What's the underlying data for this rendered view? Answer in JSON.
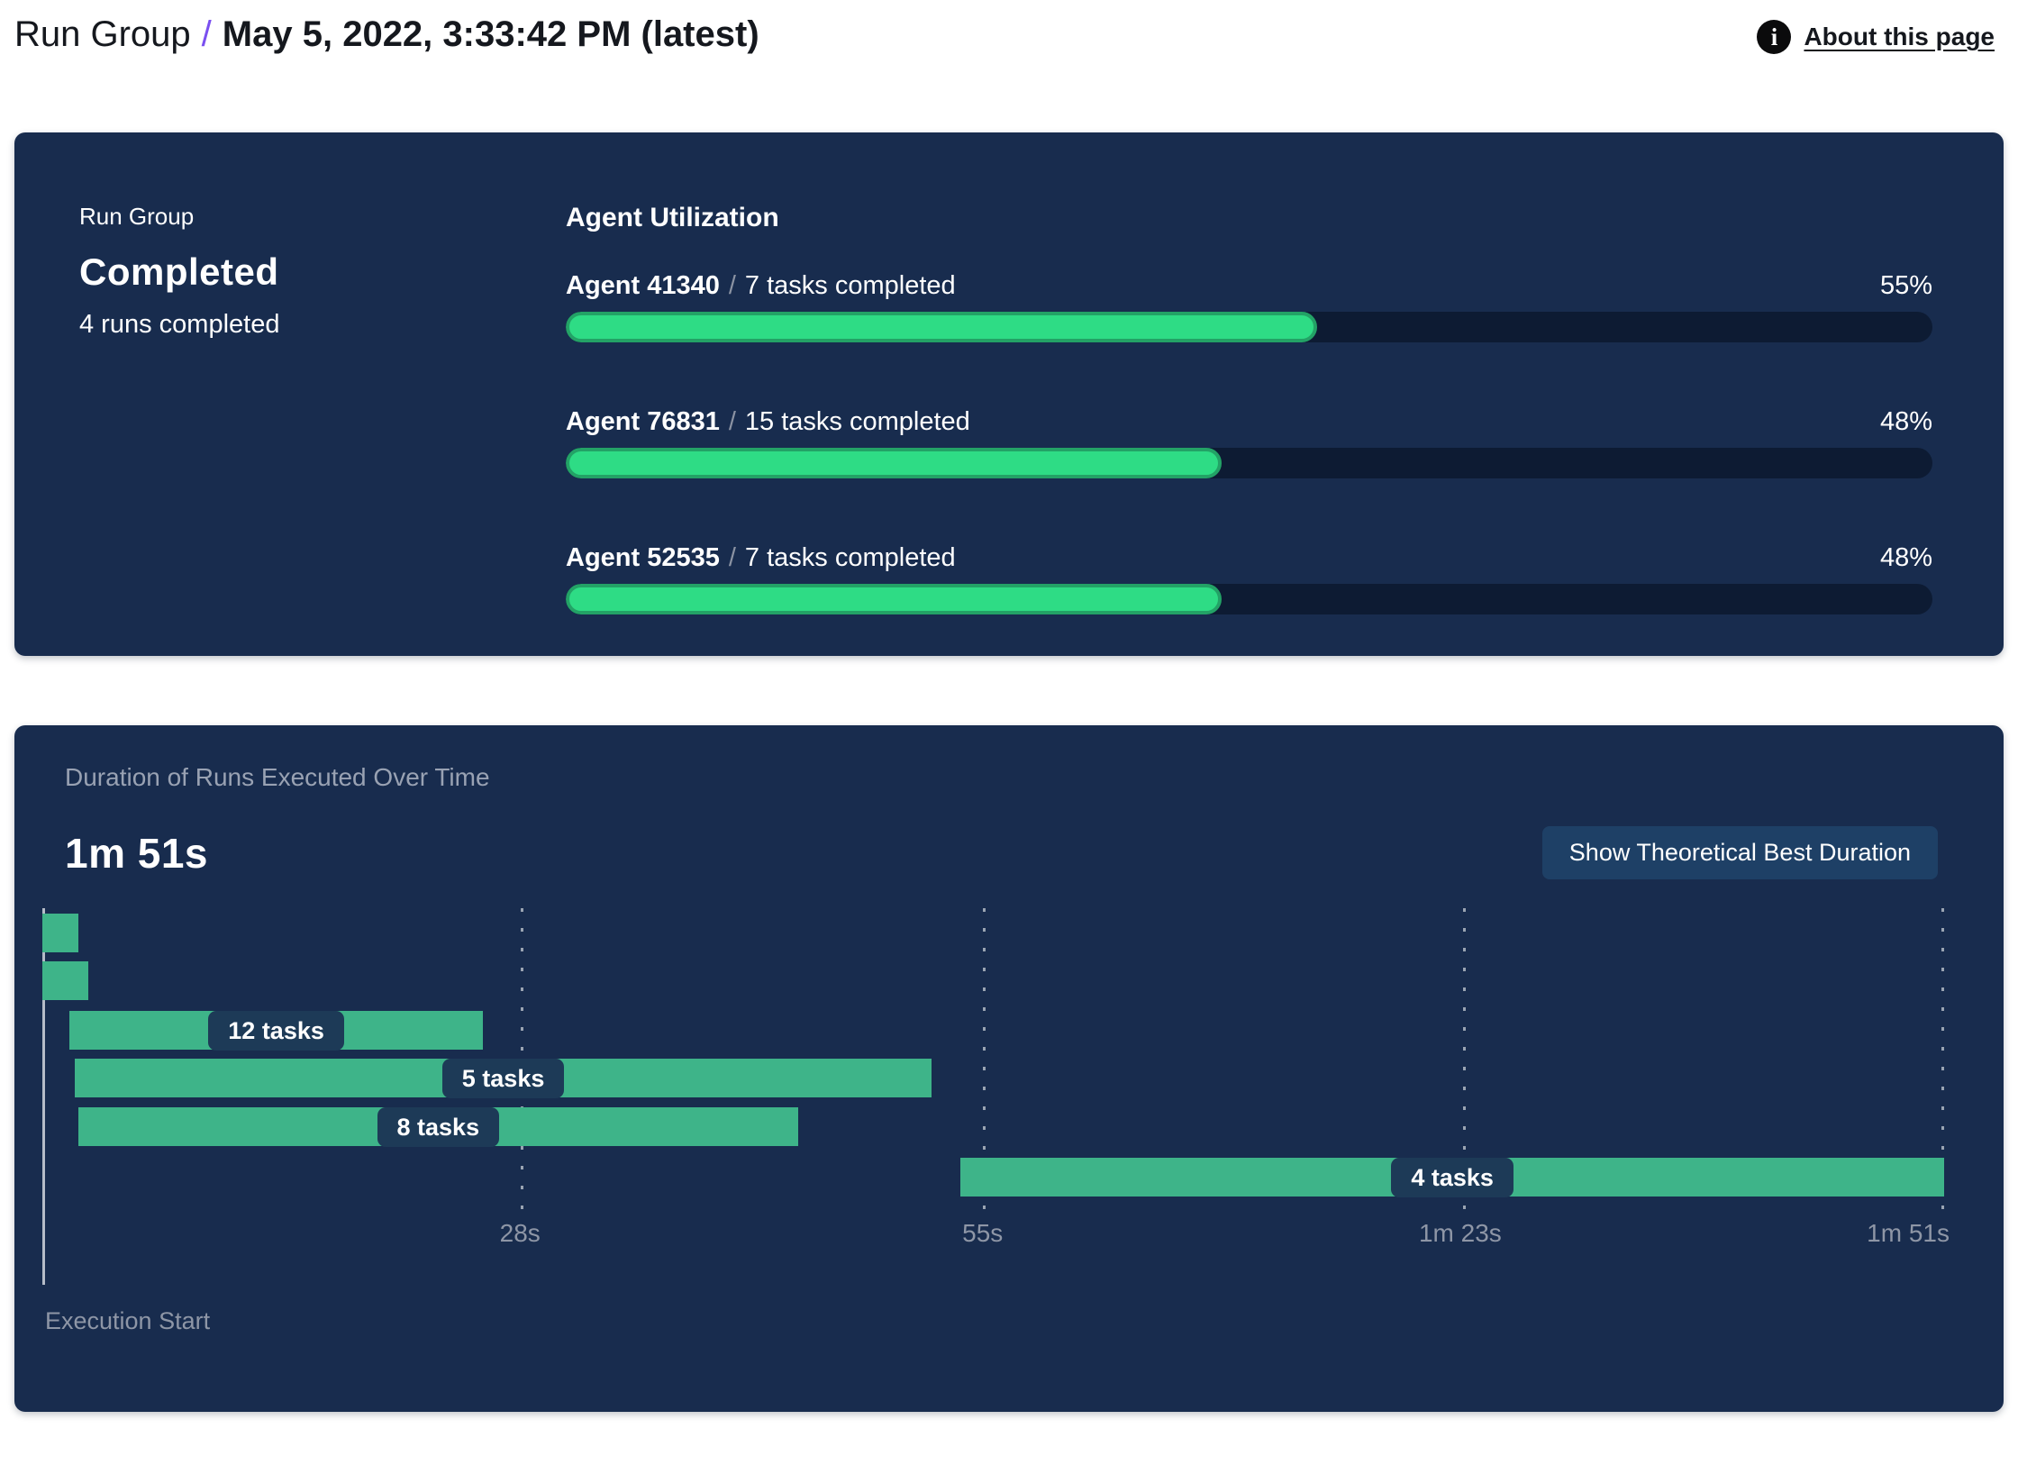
{
  "page": {
    "header": {
      "breadcrumb": {
        "root": "Run Group",
        "separator": "/",
        "current": "May 5, 2022, 3:33:42 PM (latest)"
      },
      "about": {
        "label": "About this page",
        "icon": "info-icon",
        "icon_glyph": "i"
      }
    },
    "run_group_panel": {
      "eyebrow": "Run Group",
      "status": "Completed",
      "subtitle": "4 runs completed",
      "utilization_title": "Agent Utilization",
      "agents": [
        {
          "name": "Agent 41340",
          "separator": "/",
          "tasks": "7 tasks completed",
          "percent_label": "55%",
          "percent": 55
        },
        {
          "name": "Agent 76831",
          "separator": "/",
          "tasks": "15 tasks completed",
          "percent_label": "48%",
          "percent": 48
        },
        {
          "name": "Agent 52535",
          "separator": "/",
          "tasks": "7 tasks completed",
          "percent_label": "48%",
          "percent": 48
        }
      ]
    },
    "duration_panel": {
      "title": "Duration of Runs Executed Over Time",
      "total_duration": "1m 51s",
      "button": "Show Theoretical Best Duration",
      "execution_start": "Execution Start"
    }
  },
  "chart_data": [
    {
      "type": "bar",
      "title": "Agent Utilization",
      "categories": [
        "Agent 41340",
        "Agent 76831",
        "Agent 52535"
      ],
      "values": [
        55,
        48,
        48
      ],
      "unit": "%",
      "xlim": [
        0,
        100
      ],
      "annotations": [
        "7 tasks completed",
        "15 tasks completed",
        "7 tasks completed"
      ],
      "bar_color": "#2edc85",
      "track_color": "#0d1b33"
    },
    {
      "type": "gantt",
      "title": "Duration of Runs Executed Over Time",
      "total_label": "1m 51s",
      "total_seconds": 111,
      "x_axis_label": "Execution Start",
      "x_ticks": [
        {
          "seconds": 28,
          "label": "28s"
        },
        {
          "seconds": 55,
          "label": "55s"
        },
        {
          "seconds": 83,
          "label": "1m 23s"
        },
        {
          "seconds": 111,
          "label": "1m 51s"
        }
      ],
      "runs": [
        {
          "start_s": 0,
          "end_s": 2.1,
          "label": null
        },
        {
          "start_s": 0,
          "end_s": 2.7,
          "label": null
        },
        {
          "start_s": 1.6,
          "end_s": 25.7,
          "label": "12 tasks"
        },
        {
          "start_s": 1.9,
          "end_s": 51.9,
          "label": "5 tasks"
        },
        {
          "start_s": 2.1,
          "end_s": 44.1,
          "label": "8 tasks"
        },
        {
          "start_s": 53.6,
          "end_s": 111,
          "label": "4 tasks"
        }
      ],
      "bar_color": "#3eb489",
      "grid": true
    }
  ],
  "colors": {
    "panel_bg": "#182c4e",
    "progress_track": "#0d1b33",
    "progress_fill": "#2edc85",
    "progress_fill_border": "#23a266",
    "gantt_bar": "#3eb489",
    "pill_bg": "#1d3a57",
    "button_bg": "#1e4066",
    "accent_purple": "#7a4ff0",
    "muted_text": "#8e96a6"
  }
}
